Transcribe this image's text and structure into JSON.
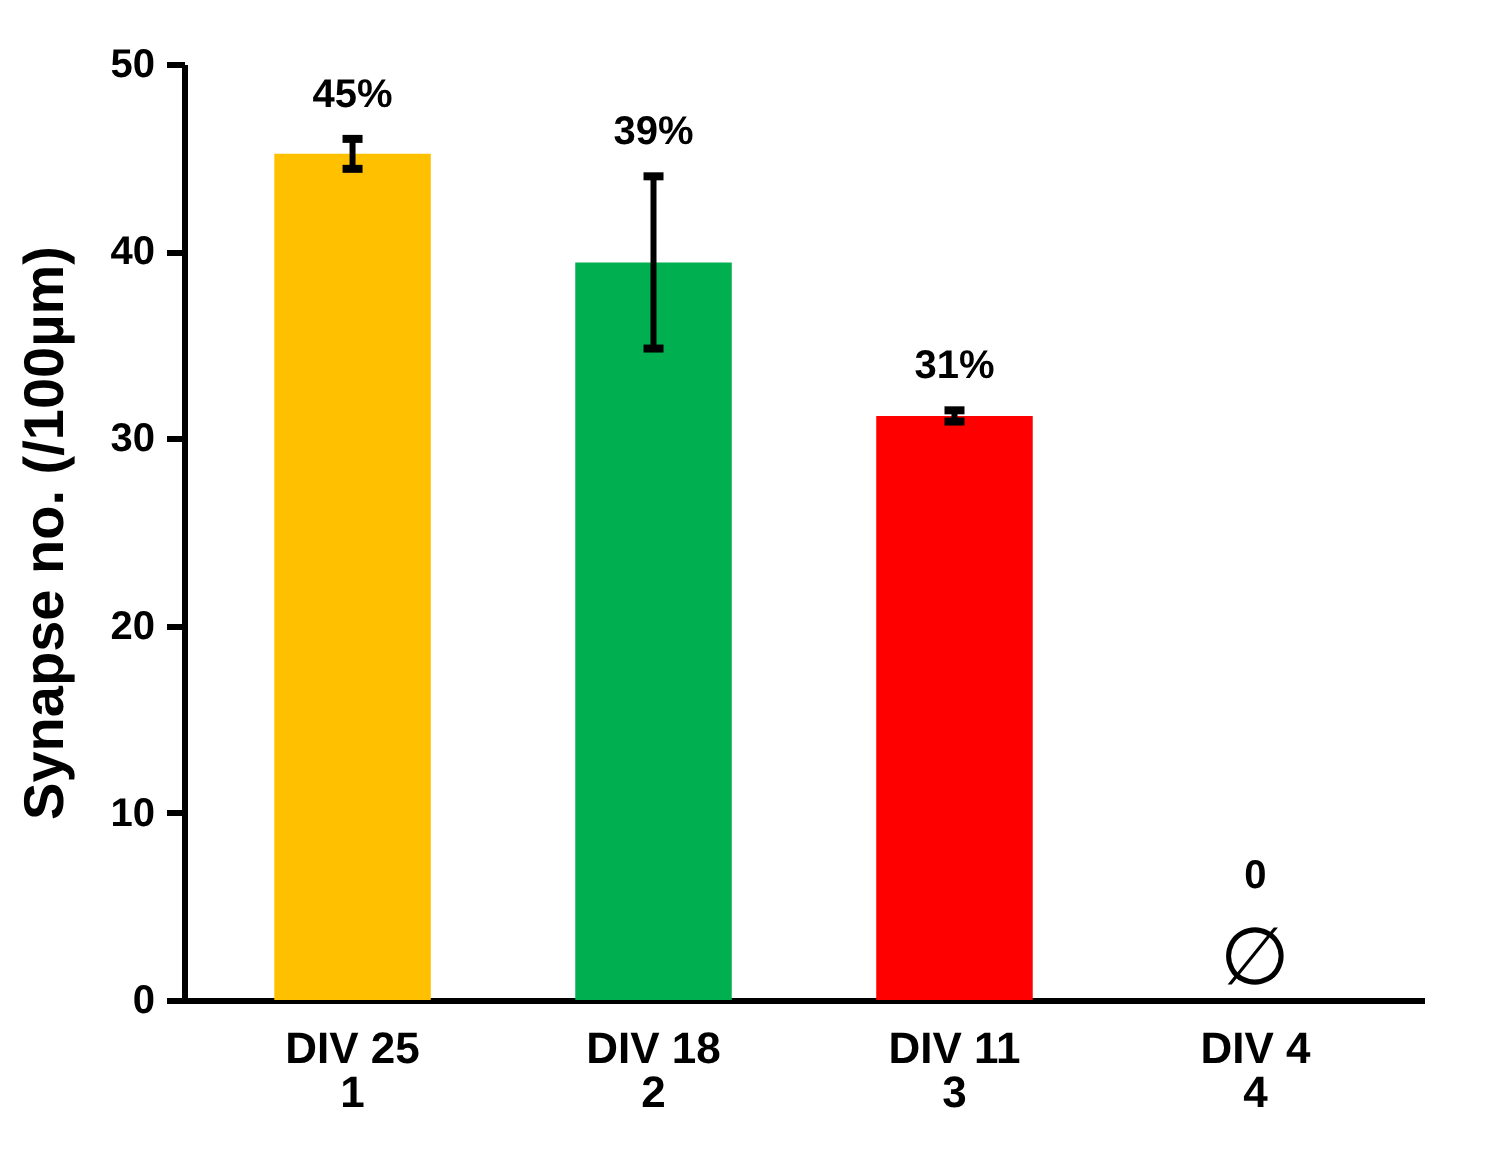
{
  "chart_data": {
    "type": "bar",
    "ylabel": "Synapse no. (/100µm)",
    "categories": [
      "DIV 25\n1",
      "DIV 18\n2",
      "DIV 11\n3",
      "DIV 4\n4"
    ],
    "values": [
      45.2,
      39.4,
      31.2,
      0
    ],
    "errors": [
      0.8,
      4.6,
      0.3,
      null
    ],
    "colors": [
      "#ffc000",
      "#00b050",
      "#ff0000",
      "#7f7f7f"
    ],
    "value_labels": [
      "45%",
      "39%",
      "31%",
      "0"
    ],
    "annotations": [
      "∅"
    ],
    "ylim": [
      0,
      50
    ],
    "yticks": [
      0,
      10,
      20,
      30,
      40,
      50
    ],
    "grid": false
  }
}
